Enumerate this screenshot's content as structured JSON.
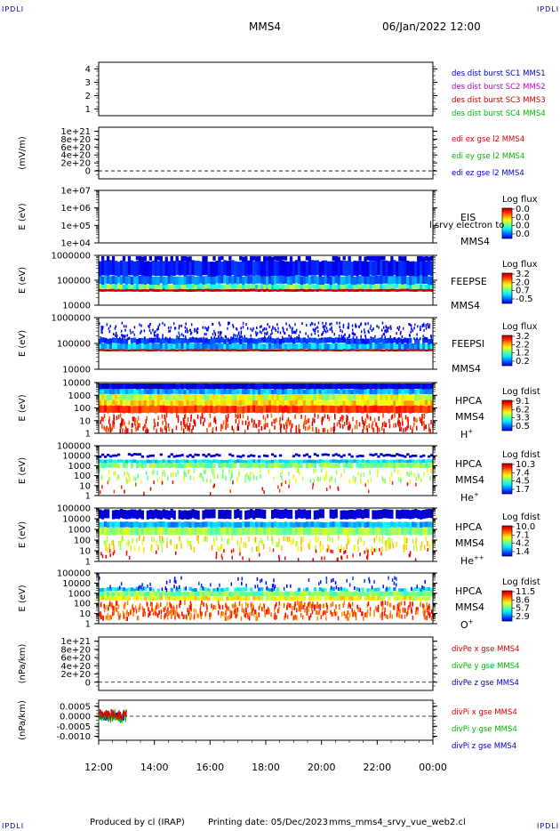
{
  "header": {
    "corner_label": "IPDLI",
    "spacecraft": "MMS4",
    "datetime": "06/Jan/2022 12:00"
  },
  "footer": {
    "produced_by": "Produced by cl (IRAP)",
    "printing_date": "Printing date: 05/Dec/2023",
    "script_name": "mms_mms4_srvy_vue_web2.cl"
  },
  "time_axis": {
    "start": "12:00",
    "end": "00:00",
    "tick_labels": [
      "12:00",
      "14:00",
      "16:00",
      "18:00",
      "20:00",
      "22:00",
      "00:00"
    ]
  },
  "colors": {
    "mms1": "#0000cc",
    "mms2": "#cc00cc",
    "mms3": "#cc0000",
    "mms4": "#00bb00",
    "x": "#dd0000",
    "y": "#00bb00",
    "z": "#0000bb",
    "axis": "#000000"
  },
  "chart_data": [
    {
      "id": "des-burst",
      "type": "line",
      "ylabel": "",
      "ylim": [
        0.5,
        4.5
      ],
      "tick_labels": [
        "1",
        "2",
        "3",
        "4"
      ],
      "legend": [
        {
          "text": "des dist burst SC1 MMS1",
          "color": "#0000cc"
        },
        {
          "text": "des dist burst SC2 MMS2",
          "color": "#cc00cc"
        },
        {
          "text": "des dist burst SC3 MMS3",
          "color": "#cc0000"
        },
        {
          "text": "des dist burst SC4 MMS4",
          "color": "#00bb00"
        }
      ]
    },
    {
      "id": "edi-e",
      "type": "line",
      "ylabel": "(mV/m)",
      "ylim": [
        -2e+20,
        1.1e+21
      ],
      "tick_labels": [
        "0",
        "2e+20",
        "4e+20",
        "6e+20",
        "8e+20",
        "1e+21"
      ],
      "zero_line": true,
      "legend": [
        {
          "text": "edi ex gse l2 MMS4",
          "color": "#dd0000"
        },
        {
          "text": "edi ey gse l2 MMS4",
          "color": "#00bb00"
        },
        {
          "text": "edi ez gse l2 MMS4",
          "color": "#0000bb"
        }
      ]
    },
    {
      "id": "eis",
      "type": "heatmap",
      "ylabel": "E (eV)",
      "ylim": [
        10000.0,
        10000000.0
      ],
      "log": true,
      "tick_labels": [
        "1e+04",
        "1e+05",
        "1e+06",
        "1e+07"
      ],
      "label_lines": [
        "EIS",
        "MMS4"
      ],
      "overlay_text": "l srvy electron to",
      "colorbar": {
        "title": "Log flux",
        "ticks": [
          "0.0",
          "0.0",
          "0.0",
          "0.0"
        ]
      }
    },
    {
      "id": "feeps-e",
      "type": "heatmap",
      "ylabel": "E (eV)",
      "ylim": [
        10000,
        1000000
      ],
      "log": true,
      "tick_labels": [
        "10000",
        "100000",
        "1000000"
      ],
      "label_lines": [
        "FEEPSE",
        "MMS4"
      ],
      "colorbar": {
        "title": "Log flux",
        "ticks": [
          "3.2",
          "2.0",
          "0.7",
          "-0.5"
        ]
      }
    },
    {
      "id": "feeps-i",
      "type": "heatmap",
      "ylabel": "E (eV)",
      "ylim": [
        10000,
        1000000
      ],
      "log": true,
      "tick_labels": [
        "10000",
        "100000",
        "1000000"
      ],
      "label_lines": [
        "FEEPSI",
        "MMS4"
      ],
      "colorbar": {
        "title": "Log flux",
        "ticks": [
          "3.2",
          "2.2",
          "1.2",
          "0.2"
        ]
      }
    },
    {
      "id": "hpca-h",
      "type": "heatmap",
      "ylabel": "E (eV)",
      "ylim": [
        1,
        10000
      ],
      "log": true,
      "tick_labels": [
        "1",
        "10",
        "100",
        "1000",
        "10000"
      ],
      "label_lines": [
        "HPCA",
        "MMS4"
      ],
      "species": {
        "base": "H",
        "sup": "+"
      },
      "colorbar": {
        "title": "Log fdist",
        "ticks": [
          "9.1",
          "6.2",
          "3.3",
          "0.5"
        ]
      }
    },
    {
      "id": "hpca-he",
      "type": "heatmap",
      "ylabel": "E (eV)",
      "ylim": [
        1,
        100000
      ],
      "log": true,
      "tick_labels": [
        "1",
        "10",
        "100",
        "1000",
        "10000",
        "100000"
      ],
      "label_lines": [
        "HPCA",
        "MMS4"
      ],
      "species": {
        "base": "He",
        "sup": "+"
      },
      "colorbar": {
        "title": "Log fdist",
        "ticks": [
          "10.3",
          "7.4",
          "4.5",
          "1.7"
        ]
      }
    },
    {
      "id": "hpca-he2",
      "type": "heatmap",
      "ylabel": "E (eV)",
      "ylim": [
        1,
        100000
      ],
      "log": true,
      "tick_labels": [
        "1",
        "10",
        "100",
        "1000",
        "10000",
        "100000"
      ],
      "label_lines": [
        "HPCA",
        "MMS4"
      ],
      "species": {
        "base": "He",
        "sup": "++"
      },
      "colorbar": {
        "title": "Log fdist",
        "ticks": [
          "10.0",
          "7.1",
          "4.2",
          "1.4"
        ]
      }
    },
    {
      "id": "hpca-o",
      "type": "heatmap",
      "ylabel": "E (eV)",
      "ylim": [
        1,
        100000
      ],
      "log": true,
      "tick_labels": [
        "1",
        "10",
        "100",
        "1000",
        "10000",
        "100000"
      ],
      "label_lines": [
        "HPCA",
        "MMS4"
      ],
      "species": {
        "base": "O",
        "sup": "+"
      },
      "colorbar": {
        "title": "Log fdist",
        "ticks": [
          "11.5",
          "8.6",
          "5.7",
          "2.9"
        ]
      }
    },
    {
      "id": "divpe",
      "type": "line",
      "ylabel": "(nPa/km)",
      "ylim": [
        -2e+20,
        1.1e+21
      ],
      "tick_labels": [
        "0",
        "2e+20",
        "4e+20",
        "6e+20",
        "8e+20",
        "1e+21"
      ],
      "zero_line": true,
      "legend": [
        {
          "text": "divPe x gse MMS4",
          "color": "#dd0000"
        },
        {
          "text": "divPe y gse MMS4",
          "color": "#00bb00"
        },
        {
          "text": "divPe z gse MMS4",
          "color": "#0000bb"
        }
      ]
    },
    {
      "id": "divpi",
      "type": "line",
      "ylabel": "(nPa/km)",
      "ylim": [
        -0.0012,
        0.0008
      ],
      "tick_labels": [
        "-0.0010",
        "-0.0005",
        "0.0000",
        "0.0005"
      ],
      "zero_line": true,
      "data_end": "13:00",
      "legend": [
        {
          "text": "divPi x gse MMS4",
          "color": "#dd0000"
        },
        {
          "text": "divPi y gse MMS4",
          "color": "#00bb00"
        },
        {
          "text": "divPi z gse MMS4",
          "color": "#0000bb"
        }
      ]
    }
  ]
}
